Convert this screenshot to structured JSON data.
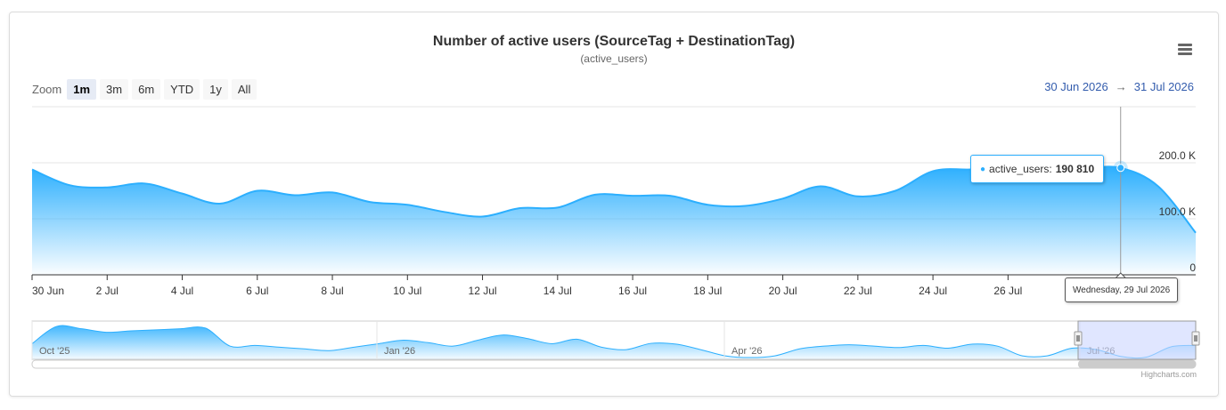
{
  "header": {
    "title": "Number of active users (SourceTag + DestinationTag)",
    "subtitle": "(active_users)"
  },
  "zoom": {
    "label": "Zoom",
    "buttons": [
      "1m",
      "3m",
      "6m",
      "YTD",
      "1y",
      "All"
    ],
    "active": "1m"
  },
  "range": {
    "from": "30 Jun 2026",
    "arrow": "→",
    "to": "31 Jul 2026"
  },
  "menu": {
    "icon": "hamburger-menu-icon"
  },
  "tooltip": {
    "series": "active_users:",
    "value": "190 810",
    "date": "Wednesday, 29 Jul 2026"
  },
  "credits": "Highcharts.com",
  "colors": {
    "series": "#2caffe",
    "accent": "#335cad",
    "navigator_mask": "#ccd6ff"
  },
  "chart_data": {
    "type": "area",
    "title": "Number of active users (SourceTag + DestinationTag)",
    "subtitle": "(active_users)",
    "series": [
      {
        "name": "active_users",
        "x": [
          "30 Jun",
          "1 Jul",
          "2 Jul",
          "3 Jul",
          "4 Jul",
          "5 Jul",
          "6 Jul",
          "7 Jul",
          "8 Jul",
          "9 Jul",
          "10 Jul",
          "11 Jul",
          "12 Jul",
          "13 Jul",
          "14 Jul",
          "15 Jul",
          "16 Jul",
          "17 Jul",
          "18 Jul",
          "19 Jul",
          "20 Jul",
          "21 Jul",
          "22 Jul",
          "23 Jul",
          "24 Jul",
          "25 Jul",
          "26 Jul",
          "27 Jul",
          "28 Jul",
          "29 Jul",
          "30 Jul",
          "31 Jul"
        ],
        "values": [
          188000,
          160000,
          156000,
          163000,
          145000,
          127000,
          150000,
          142000,
          147000,
          130000,
          125000,
          112000,
          104000,
          119000,
          120000,
          143000,
          141000,
          141000,
          125000,
          123000,
          136000,
          158000,
          140000,
          150000,
          185000,
          188000,
          188000,
          189000,
          190000,
          190810,
          158000,
          75000
        ]
      }
    ],
    "yticks": [
      "0",
      "100.0 K",
      "200.0 K"
    ],
    "ylim": [
      0,
      300000
    ],
    "xticks": [
      "30 Jun",
      "2 Jul",
      "4 Jul",
      "6 Jul",
      "8 Jul",
      "10 Jul",
      "12 Jul",
      "14 Jul",
      "16 Jul",
      "18 Jul",
      "20 Jul",
      "22 Jul",
      "24 Jul",
      "26 Jul"
    ],
    "grid": true,
    "legend": "none",
    "navigator": {
      "labels": [
        "Oct '25",
        "Jan '26",
        "Apr '26",
        "Jul '26"
      ],
      "values": [
        0.45,
        0.95,
        0.88,
        0.78,
        0.82,
        0.85,
        0.88,
        0.9,
        0.38,
        0.4,
        0.35,
        0.3,
        0.25,
        0.35,
        0.45,
        0.55,
        0.48,
        0.38,
        0.55,
        0.7,
        0.6,
        0.45,
        0.58,
        0.35,
        0.28,
        0.46,
        0.44,
        0.28,
        0.1,
        0.05,
        0.1,
        0.3,
        0.38,
        0.42,
        0.38,
        0.34,
        0.4,
        0.32,
        0.44,
        0.38,
        0.1,
        0.1,
        0.32,
        0.28,
        0.08,
        0.06,
        0.36,
        0.4
      ]
    }
  }
}
